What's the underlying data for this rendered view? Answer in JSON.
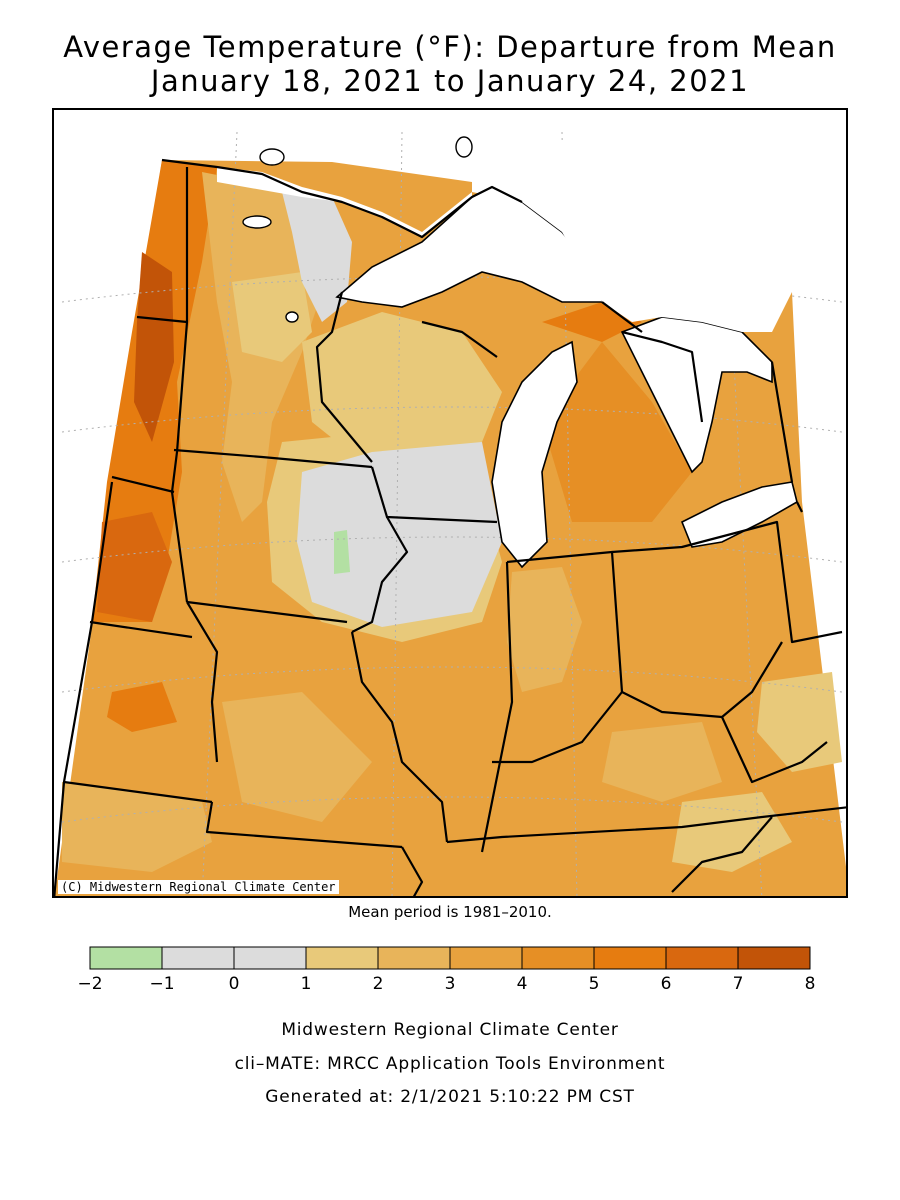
{
  "title_line1": "Average Temperature (°F): Departure from Mean",
  "title_line2": "January 18, 2021 to January 24, 2021",
  "credit": "(C) Midwestern Regional Climate Center",
  "mean_period": "Mean period is 1981–2010.",
  "legend": {
    "ticks": [
      "−2",
      "−1",
      "0",
      "1",
      "2",
      "3",
      "4",
      "5",
      "6",
      "7",
      "8"
    ],
    "bins": [
      {
        "min": -2,
        "max": -1,
        "color": "#b3e0a3"
      },
      {
        "min": -1,
        "max": 0,
        "color": "#dcdcdc"
      },
      {
        "min": 0,
        "max": 1,
        "color": "#dcdcdc"
      },
      {
        "min": 1,
        "max": 2,
        "color": "#e8c97a"
      },
      {
        "min": 2,
        "max": 3,
        "color": "#e8b45a"
      },
      {
        "min": 3,
        "max": 4,
        "color": "#e8a23e"
      },
      {
        "min": 4,
        "max": 5,
        "color": "#e68f25"
      },
      {
        "min": 5,
        "max": 6,
        "color": "#e67c10"
      },
      {
        "min": 6,
        "max": 7,
        "color": "#d9680f"
      },
      {
        "min": 7,
        "max": 8,
        "color": "#c25408"
      }
    ]
  },
  "footer": {
    "line1": "Midwestern Regional Climate Center",
    "line2": "cli–MATE: MRCC Application Tools Environment",
    "line3": "Generated at: 2/1/2021 5:10:22 PM CST"
  },
  "colors": {
    "lake": "#ffffff",
    "border": "#000000",
    "grid": "#b0b0b0"
  }
}
